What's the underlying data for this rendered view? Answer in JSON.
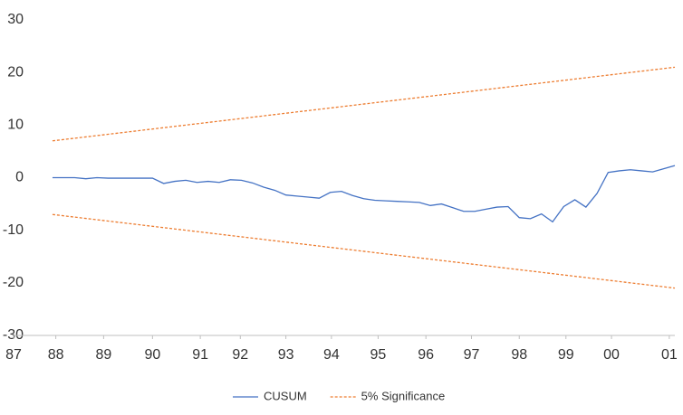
{
  "chart_data": {
    "type": "line",
    "x": [
      0,
      1,
      2,
      3,
      4,
      5,
      6,
      7,
      8,
      9,
      10,
      11,
      12,
      13,
      14,
      15,
      16,
      17,
      18,
      19,
      20,
      21,
      22,
      23,
      24,
      25,
      26,
      27,
      28,
      29,
      30,
      31,
      32,
      33,
      34,
      35,
      36,
      37,
      38,
      39,
      40,
      41,
      42,
      43,
      44,
      45,
      46,
      47,
      48,
      49,
      50,
      51,
      52,
      53,
      54,
      55,
      56
    ],
    "series": [
      {
        "name": "CUSUM",
        "color": "#4472c4",
        "dashed": false,
        "values": [
          0,
          0,
          0,
          -0.2,
          0,
          -0.1,
          -0.1,
          -0.1,
          -0.1,
          -0.1,
          -1.1,
          -0.7,
          -0.5,
          -0.9,
          -0.7,
          -0.9,
          -0.4,
          -0.5,
          -1,
          -1.8,
          -2.4,
          -3.3,
          -3.5,
          -3.7,
          -3.9,
          -2.8,
          -2.6,
          -3.4,
          -4,
          -4.3,
          -4.4,
          -4.5,
          -4.6,
          -4.7,
          -5.3,
          -5,
          -5.7,
          -6.4,
          -6.4,
          -6,
          -5.6,
          -5.5,
          -7.6,
          -7.8,
          -6.9,
          -8.4,
          -5.5,
          -4.2,
          -5.6,
          -3,
          1,
          1.3,
          1.5,
          1.3,
          1.1,
          1.7,
          2.3
        ]
      },
      {
        "name": "5% Significance",
        "color": "#ed7d31",
        "dashed": true,
        "values": [
          7,
          7.25,
          7.5,
          7.75,
          8,
          8.25,
          8.5,
          8.75,
          9,
          9.25,
          9.5,
          9.75,
          10,
          10.25,
          10.5,
          10.75,
          11,
          11.25,
          11.5,
          11.75,
          12,
          12.25,
          12.5,
          12.75,
          13,
          13.25,
          13.5,
          13.75,
          14,
          14.25,
          14.5,
          14.75,
          15,
          15.25,
          15.5,
          15.75,
          16,
          16.25,
          16.5,
          16.75,
          17,
          17.25,
          17.5,
          17.75,
          18,
          18.25,
          18.5,
          18.75,
          19,
          19.25,
          19.5,
          19.75,
          20,
          20.25,
          20.5,
          20.75,
          21
        ]
      },
      {
        "name": "5% Significance",
        "color": "#ed7d31",
        "dashed": true,
        "values": [
          -7,
          -7.25,
          -7.5,
          -7.75,
          -8,
          -8.25,
          -8.5,
          -8.75,
          -9,
          -9.25,
          -9.5,
          -9.75,
          -10,
          -10.25,
          -10.5,
          -10.75,
          -11,
          -11.25,
          -11.5,
          -11.75,
          -12,
          -12.25,
          -12.5,
          -12.75,
          -13,
          -13.25,
          -13.5,
          -13.75,
          -14,
          -14.25,
          -14.5,
          -14.75,
          -15,
          -15.25,
          -15.5,
          -15.75,
          -16,
          -16.25,
          -16.5,
          -16.75,
          -17,
          -17.25,
          -17.5,
          -17.75,
          -18,
          -18.25,
          -18.5,
          -18.75,
          -19,
          -19.25,
          -19.5,
          -19.75,
          -20,
          -20.25,
          -20.5,
          -20.75,
          -21
        ]
      }
    ],
    "xlim": [
      -3.5,
      56
    ],
    "xticks": [
      {
        "value": -3.5,
        "label": "87"
      },
      {
        "value": 0.3,
        "label": "88"
      },
      {
        "value": 4.6,
        "label": "89"
      },
      {
        "value": 9,
        "label": "90"
      },
      {
        "value": 13.3,
        "label": "91"
      },
      {
        "value": 16.9,
        "label": "92"
      },
      {
        "value": 21,
        "label": "93"
      },
      {
        "value": 25.1,
        "label": "94"
      },
      {
        "value": 29.3,
        "label": "95"
      },
      {
        "value": 33.6,
        "label": "96"
      },
      {
        "value": 37.7,
        "label": "97"
      },
      {
        "value": 42,
        "label": "98"
      },
      {
        "value": 46.2,
        "label": "99"
      },
      {
        "value": 50.3,
        "label": "00"
      },
      {
        "value": 55.5,
        "label": "01"
      }
    ],
    "ylim": [
      -30,
      30
    ],
    "yticks": [
      -30,
      -20,
      -10,
      0,
      10,
      20,
      30
    ],
    "grid": false,
    "legend": "bottom"
  }
}
